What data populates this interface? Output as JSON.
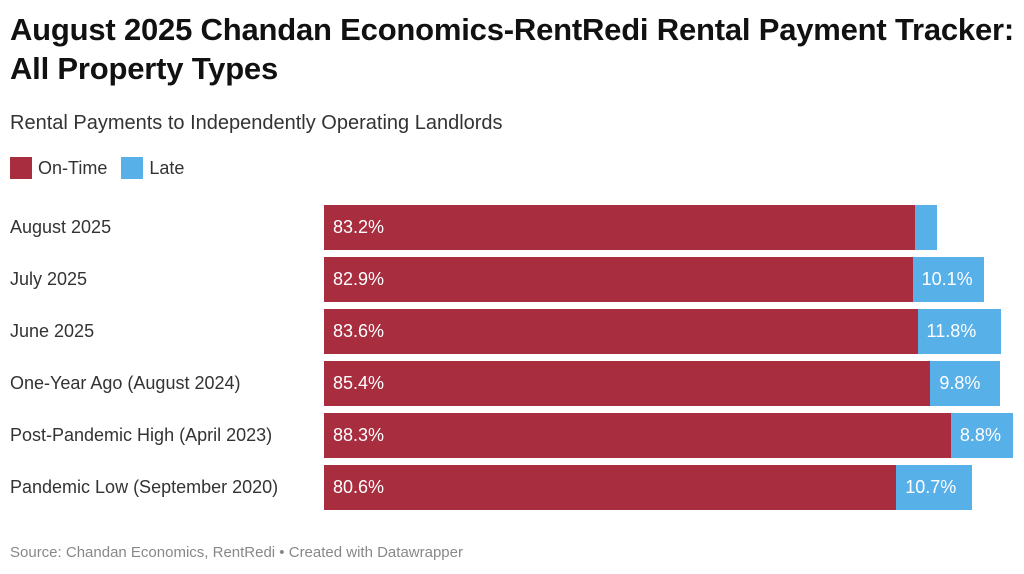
{
  "title": "August 2025 Chandan Economics-RentRedi Rental Payment Tracker: All Property Types",
  "subtitle": "Rental Payments to Independently Operating Landlords",
  "source": "Source: Chandan Economics, RentRedi • Created with Datawrapper",
  "chart_data": {
    "type": "bar",
    "orientation": "horizontal",
    "stacked": true,
    "categories": [
      "August 2025",
      "July 2025",
      "June 2025",
      "One-Year Ago (August 2024)",
      "Post-Pandemic High (April 2023)",
      "Pandemic Low (September 2020)"
    ],
    "series": [
      {
        "name": "On-Time",
        "color": "#a82d3f",
        "values": [
          83.2,
          82.9,
          83.6,
          85.4,
          88.3,
          80.6
        ],
        "labels": [
          "83.2%",
          "82.9%",
          "83.6%",
          "85.4%",
          "88.3%",
          "80.6%"
        ]
      },
      {
        "name": "Late",
        "color": "#58b0e9",
        "values": [
          3.1,
          10.1,
          11.8,
          9.8,
          8.8,
          10.7
        ],
        "labels": [
          "",
          "10.1%",
          "11.8%",
          "9.8%",
          "8.8%",
          "10.7%"
        ]
      }
    ],
    "legend": "top-left",
    "grid": false
  }
}
